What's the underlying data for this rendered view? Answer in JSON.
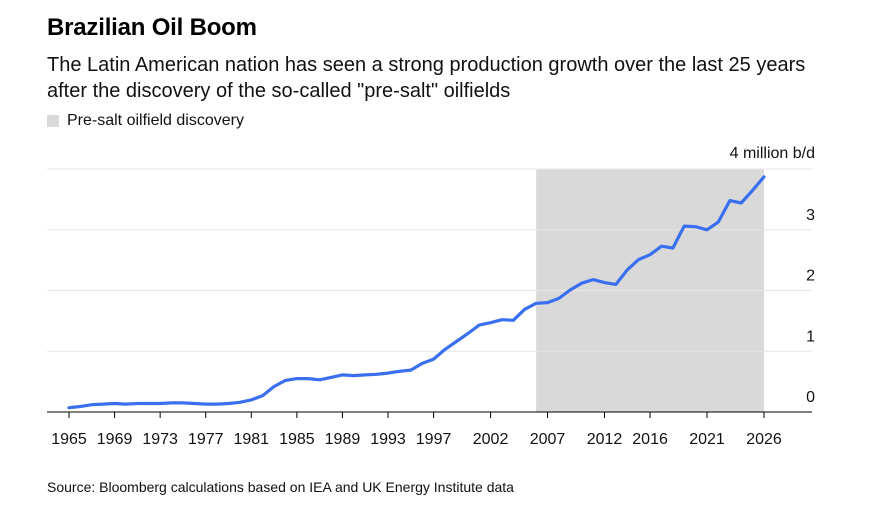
{
  "header": {
    "title": "Brazilian Oil Boom",
    "subtitle": "The Latin American nation has seen a strong production growth over the last 25 years after the discovery of the so-called \"pre-salt\" oilfields"
  },
  "legend": {
    "label": "Pre-salt oilfield discovery"
  },
  "footer": {
    "source": "Source: Bloomberg calculations based on IEA and UK Energy Institute data"
  },
  "chart_data": {
    "type": "line",
    "y_unit_label": "4 million b/d",
    "ylim": [
      0,
      4
    ],
    "xlim": [
      1965,
      2027.5
    ],
    "grid": true,
    "legend_position": "top-left",
    "y_ticks": [
      {
        "value": 0,
        "label": "0"
      },
      {
        "value": 1,
        "label": "1"
      },
      {
        "value": 2,
        "label": "2"
      },
      {
        "value": 3,
        "label": "3"
      }
    ],
    "x_ticks": [
      "1965",
      "1969",
      "1973",
      "1977",
      "1981",
      "1985",
      "1989",
      "1993",
      "1997",
      "2002",
      "2007",
      "2012",
      "2016",
      "2021",
      "2026"
    ],
    "shaded_region": {
      "label": "Pre-salt oilfield discovery",
      "x_start": 2006,
      "x_end": 2026,
      "color": "#d9d9d9"
    },
    "series": [
      {
        "color": "#3a6ff0",
        "x": [
          1965,
          1966,
          1967,
          1968,
          1969,
          1970,
          1971,
          1972,
          1973,
          1974,
          1975,
          1976,
          1977,
          1978,
          1979,
          1980,
          1981,
          1982,
          1983,
          1984,
          1985,
          1986,
          1987,
          1988,
          1989,
          1990,
          1991,
          1992,
          1993,
          1994,
          1995,
          1996,
          1997,
          1998,
          1999,
          2000,
          2001,
          2002,
          2003,
          2004,
          2005,
          2006,
          2007,
          2008,
          2009,
          2010,
          2011,
          2012,
          2013,
          2014,
          2015,
          2016,
          2017,
          2018,
          2019,
          2020,
          2021,
          2022,
          2023,
          2024,
          2025,
          2026
        ],
        "values": [
          0.07,
          0.09,
          0.12,
          0.13,
          0.14,
          0.13,
          0.14,
          0.14,
          0.14,
          0.15,
          0.15,
          0.14,
          0.13,
          0.13,
          0.14,
          0.16,
          0.2,
          0.27,
          0.42,
          0.52,
          0.55,
          0.55,
          0.53,
          0.57,
          0.61,
          0.6,
          0.61,
          0.62,
          0.64,
          0.67,
          0.69,
          0.8,
          0.87,
          1.03,
          1.16,
          1.29,
          1.43,
          1.47,
          1.52,
          1.51,
          1.69,
          1.79,
          1.8,
          1.87,
          2.01,
          2.12,
          2.18,
          2.13,
          2.1,
          2.34,
          2.51,
          2.59,
          2.73,
          2.7,
          3.06,
          3.05,
          3.0,
          3.13,
          3.48,
          3.44,
          3.65,
          3.87
        ]
      }
    ]
  }
}
